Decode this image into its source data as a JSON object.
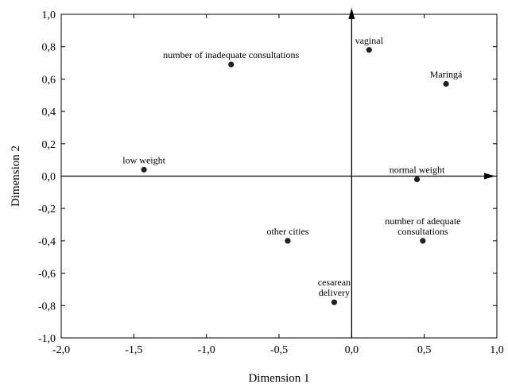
{
  "chart_data": {
    "type": "scatter",
    "title": "",
    "xlabel": "Dimension 1",
    "ylabel": "Dimension 2",
    "xlim": [
      -2.0,
      1.0
    ],
    "ylim": [
      -1.0,
      1.0
    ],
    "xticks": [
      -2.0,
      -1.5,
      -1.0,
      -0.5,
      0.0,
      0.5,
      1.0
    ],
    "yticks": [
      -1.0,
      -0.8,
      -0.6,
      -0.4,
      -0.2,
      0.0,
      0.2,
      0.4,
      0.6,
      0.8,
      1.0
    ],
    "xtick_labels": [
      "-2,0",
      "-1,5",
      "-1,0",
      "-0,5",
      "0,0",
      "0,5",
      "1,0"
    ],
    "ytick_labels": [
      "-1,0",
      "-0,8",
      "-0,6",
      "-0,4",
      "-0,2",
      "0,0",
      "0,2",
      "0,4",
      "0,6",
      "0,8",
      "1,0"
    ],
    "grid": false,
    "origin_axes_with_arrows": true,
    "marker_color": "#222222",
    "points": [
      {
        "label": [
          "number of inadequate consultations"
        ],
        "x": -0.83,
        "y": 0.69
      },
      {
        "label": [
          "vaginal"
        ],
        "x": 0.12,
        "y": 0.78
      },
      {
        "label": [
          "Maringá"
        ],
        "x": 0.65,
        "y": 0.57
      },
      {
        "label": [
          "low weight"
        ],
        "x": -1.43,
        "y": 0.04
      },
      {
        "label": [
          "normal weight"
        ],
        "x": 0.45,
        "y": -0.02
      },
      {
        "label": [
          "other cities"
        ],
        "x": -0.44,
        "y": -0.4
      },
      {
        "label": [
          "number of adequate",
          "consultations"
        ],
        "x": 0.49,
        "y": -0.4
      },
      {
        "label": [
          "cesarean",
          "delivery"
        ],
        "x": -0.12,
        "y": -0.78
      }
    ]
  }
}
